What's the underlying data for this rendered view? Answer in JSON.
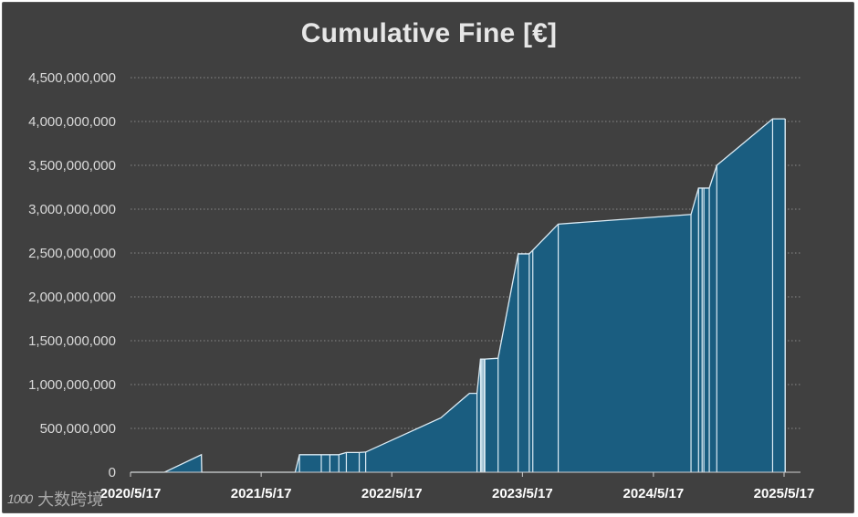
{
  "chart_data": {
    "type": "area",
    "title": "Cumulative Fine [€]",
    "xlabel": "",
    "ylabel": "",
    "ylim": [
      0,
      4500000000
    ],
    "y_ticks": [
      0,
      500000000,
      1000000000,
      1500000000,
      2000000000,
      2500000000,
      3000000000,
      3500000000,
      4000000000,
      4500000000
    ],
    "y_tick_labels": [
      "0",
      "500,000,000",
      "1,000,000,000",
      "1,500,000,000",
      "2,000,000,000",
      "2,500,000,000",
      "3,000,000,000",
      "3,500,000,000",
      "4,000,000,000",
      "4,500,000,000"
    ],
    "x_ticks": [
      "2020-05-17",
      "2021-05-17",
      "2022-05-17",
      "2023-05-17",
      "2024-05-17",
      "2025-05-17"
    ],
    "x_tick_labels": [
      "2020/5/17",
      "2021/5/17",
      "2022/5/17",
      "2023/5/17",
      "2024/5/17",
      "2025/5/17"
    ],
    "xlim": [
      "2020-05-17",
      "2025-06-01"
    ],
    "grid": "horizontal dotted",
    "fill_color": "#1a5d80",
    "line_color": "#dcecf5",
    "points": [
      {
        "x": "2020-05-17",
        "y": 0
      },
      {
        "x": "2020-08-20",
        "y": 0
      },
      {
        "x": "2020-12-01",
        "y": 200000000
      },
      {
        "x": "2020-12-02",
        "y": 0
      },
      {
        "x": "2021-08-20",
        "y": 0
      },
      {
        "x": "2021-09-01",
        "y": 200000000
      },
      {
        "x": "2021-10-15",
        "y": 200000000
      },
      {
        "x": "2021-11-01",
        "y": 200000000
      },
      {
        "x": "2021-11-25",
        "y": 200000000
      },
      {
        "x": "2021-12-20",
        "y": 200000000
      },
      {
        "x": "2022-01-10",
        "y": 225000000
      },
      {
        "x": "2022-02-15",
        "y": 225000000
      },
      {
        "x": "2022-03-05",
        "y": 230000000
      },
      {
        "x": "2022-10-01",
        "y": 620000000
      },
      {
        "x": "2022-12-20",
        "y": 900000000
      },
      {
        "x": "2023-01-10",
        "y": 900000000
      },
      {
        "x": "2023-01-20",
        "y": 1290000000
      },
      {
        "x": "2023-02-01",
        "y": 1290000000
      },
      {
        "x": "2023-03-10",
        "y": 1300000000
      },
      {
        "x": "2023-05-05",
        "y": 2490000000
      },
      {
        "x": "2023-06-05",
        "y": 2490000000
      },
      {
        "x": "2023-08-25",
        "y": 2830000000
      },
      {
        "x": "2024-08-30",
        "y": 2940000000
      },
      {
        "x": "2024-09-20",
        "y": 3240000000
      },
      {
        "x": "2024-10-20",
        "y": 3240000000
      },
      {
        "x": "2024-11-10",
        "y": 3500000000
      },
      {
        "x": "2025-04-15",
        "y": 4030000000
      },
      {
        "x": "2025-05-20",
        "y": 4030000000
      }
    ],
    "vertical_separators": [
      "2021-09-01",
      "2021-11-01",
      "2021-11-25",
      "2021-12-20",
      "2022-01-10",
      "2022-02-15",
      "2022-03-05",
      "2023-01-10",
      "2023-01-20",
      "2023-01-22",
      "2023-01-26",
      "2023-01-30",
      "2023-02-01",
      "2023-03-10",
      "2023-05-05",
      "2023-06-05",
      "2023-06-15",
      "2023-08-25",
      "2024-08-30",
      "2024-09-20",
      "2024-09-30",
      "2024-10-05",
      "2024-10-20",
      "2024-11-10",
      "2025-04-15",
      "2025-05-20"
    ]
  },
  "watermark": {
    "logo": "1000",
    "text": "大数跨境"
  }
}
